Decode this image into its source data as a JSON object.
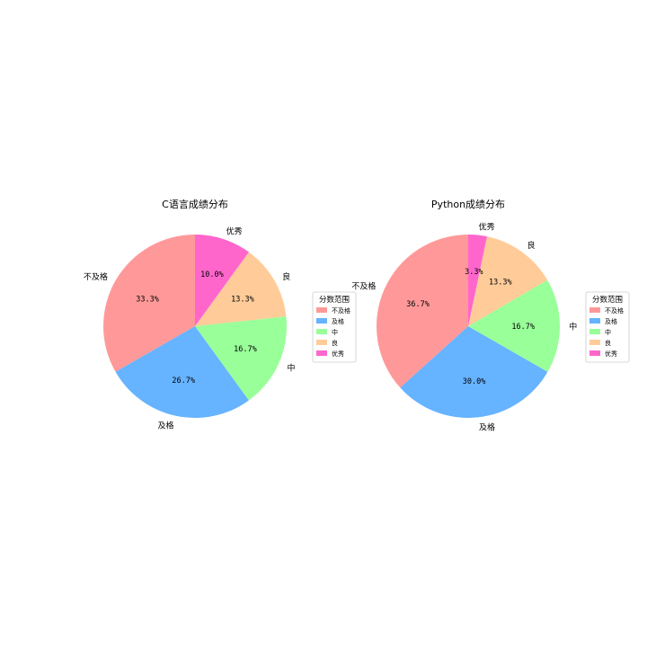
{
  "chart_data": [
    {
      "type": "pie",
      "title": "C语言成绩分布",
      "categories": [
        "不及格",
        "及格",
        "中",
        "良",
        "优秀"
      ],
      "values": [
        33.3,
        26.7,
        16.7,
        13.3,
        10.0
      ],
      "percent_labels": [
        "33.3%",
        "26.7%",
        "16.7%",
        "13.3%",
        "10.0%"
      ],
      "colors": [
        "#ff9999",
        "#66b3ff",
        "#99ff99",
        "#ffcc99",
        "#ff66cc"
      ],
      "start_angle_deg": 90,
      "direction": "counterclockwise",
      "legend": {
        "title": "分数范围",
        "entries": [
          "不及格",
          "及格",
          "中",
          "良",
          "优秀"
        ],
        "placement": "right"
      }
    },
    {
      "type": "pie",
      "title": "Python成绩分布",
      "categories": [
        "不及格",
        "及格",
        "中",
        "良",
        "优秀"
      ],
      "values": [
        36.7,
        30.0,
        16.7,
        13.3,
        3.3
      ],
      "percent_labels": [
        "36.7%",
        "30.0%",
        "16.7%",
        "13.3%",
        "3.3%"
      ],
      "colors": [
        "#ff9999",
        "#66b3ff",
        "#99ff99",
        "#ffcc99",
        "#ff66cc"
      ],
      "start_angle_deg": 90,
      "direction": "counterclockwise",
      "legend": {
        "title": "分数范围",
        "entries": [
          "不及格",
          "及格",
          "中",
          "良",
          "优秀"
        ],
        "placement": "right"
      }
    }
  ]
}
